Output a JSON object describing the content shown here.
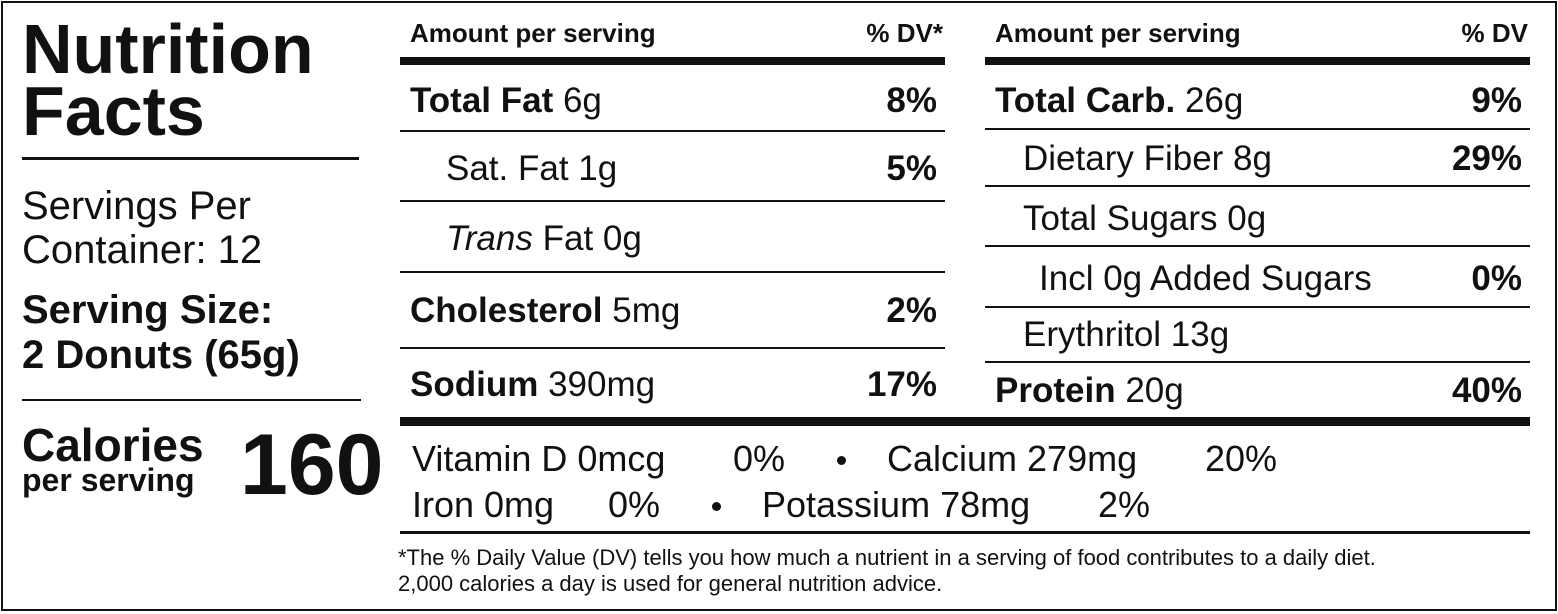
{
  "title": "Nutrition Facts",
  "servings": "Servings Per Container: 12",
  "serving_size": {
    "label": "Serving Size:",
    "value": "2 Donuts (65g)"
  },
  "calories": {
    "label": "Calories",
    "sublabel": "per serving",
    "value": "160"
  },
  "left": {
    "header": {
      "amount": "Amount per serving",
      "dv": "% DV*"
    },
    "rows": [
      {
        "bold": "Total Fat",
        "text": "6g",
        "dv": "8%"
      },
      {
        "text": "Sat. Fat 1g",
        "dv": "5%"
      },
      {
        "italic": "Trans",
        "text": "Fat 0g"
      },
      {
        "bold": "Cholesterol",
        "text": "5mg",
        "dv": "2%"
      },
      {
        "bold": "Sodium",
        "text": "390mg",
        "dv": "17%"
      }
    ]
  },
  "right": {
    "header": {
      "amount": "Amount per serving",
      "dv": "% DV"
    },
    "rows": [
      {
        "bold": "Total Carb.",
        "text": "26g",
        "dv": "9%"
      },
      {
        "text": "Dietary Fiber 8g",
        "dv": "29%"
      },
      {
        "text": "Total Sugars 0g"
      },
      {
        "text": "Incl 0g Added Sugars",
        "dv": "0%"
      },
      {
        "text": "Erythritol 13g"
      },
      {
        "bold": "Protein",
        "text": "20g",
        "dv": "40%"
      }
    ]
  },
  "vitamins": [
    [
      {
        "name": "Vitamin D 0mcg",
        "dv": "0%"
      },
      {
        "name": "Calcium 279mg",
        "dv": "20%"
      }
    ],
    [
      {
        "name": "Iron 0mg",
        "dv": "0%"
      },
      {
        "name": "Potassium 78mg",
        "dv": "2%"
      }
    ]
  ],
  "footnote": [
    "*The % Daily Value (DV) tells you how much a nutrient in a serving of food contributes to a daily diet.",
    "2,000 calories a day is used for general nutrition advice."
  ]
}
